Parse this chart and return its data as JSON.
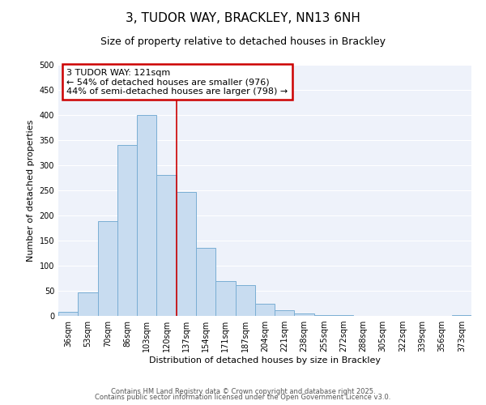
{
  "title": "3, TUDOR WAY, BRACKLEY, NN13 6NH",
  "subtitle": "Size of property relative to detached houses in Brackley",
  "xlabel": "Distribution of detached houses by size in Brackley",
  "ylabel": "Number of detached properties",
  "bar_values": [
    8,
    47,
    188,
    340,
    400,
    280,
    246,
    135,
    70,
    62,
    25,
    12,
    5,
    2,
    1,
    0,
    0,
    0,
    0,
    0,
    2
  ],
  "bar_labels": [
    "36sqm",
    "53sqm",
    "70sqm",
    "86sqm",
    "103sqm",
    "120sqm",
    "137sqm",
    "154sqm",
    "171sqm",
    "187sqm",
    "204sqm",
    "221sqm",
    "238sqm",
    "255sqm",
    "272sqm",
    "288sqm",
    "305sqm",
    "322sqm",
    "339sqm",
    "356sqm",
    "373sqm"
  ],
  "bar_color": "#c8dcf0",
  "bar_edge_color": "#7aaed4",
  "vline_color": "#cc0000",
  "ylim": [
    0,
    500
  ],
  "yticks": [
    0,
    50,
    100,
    150,
    200,
    250,
    300,
    350,
    400,
    450,
    500
  ],
  "annotation_title": "3 TUDOR WAY: 121sqm",
  "annotation_line1": "← 54% of detached houses are smaller (976)",
  "annotation_line2": "44% of semi-detached houses are larger (798) →",
  "annotation_box_color": "#cc0000",
  "footer_line1": "Contains HM Land Registry data © Crown copyright and database right 2025.",
  "footer_line2": "Contains public sector information licensed under the Open Government Licence v3.0.",
  "background_color": "#eef2fa",
  "grid_color": "#ffffff",
  "title_fontsize": 11,
  "subtitle_fontsize": 9,
  "ylabel_fontsize": 8,
  "xlabel_fontsize": 8,
  "tick_fontsize": 7,
  "annotation_fontsize": 8,
  "footer_fontsize": 6
}
